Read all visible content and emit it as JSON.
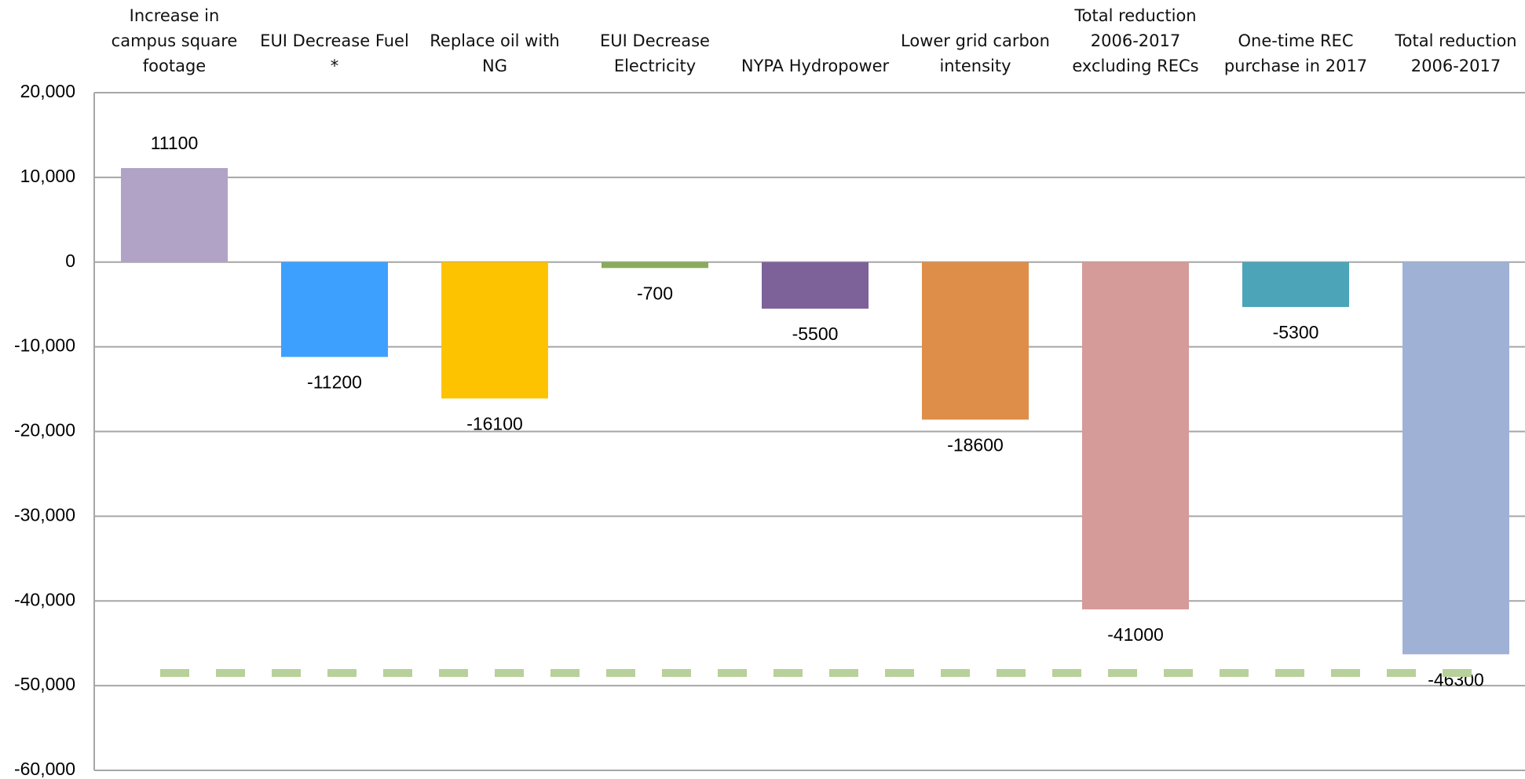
{
  "chart_data": {
    "type": "bar",
    "categories": [
      "Increase in campus square footage",
      "EUI Decrease Fuel *",
      "Replace oil with NG",
      "EUI Decrease Electricity",
      "NYPA Hydropower",
      "Lower grid carbon intensity",
      "Total reduction 2006-2017 excluding RECs",
      "One-time REC purchase in 2017",
      "Total reduction 2006-2017"
    ],
    "values": [
      11100,
      -11200,
      -16100,
      -700,
      -5500,
      -18600,
      -41000,
      -5300,
      -46300
    ],
    "colors": [
      "#b1a3c6",
      "#3ea0fe",
      "#fec300",
      "#8aac5a",
      "#7d6299",
      "#de8e48",
      "#d59b98",
      "#4ba4b8",
      "#9fb2d6"
    ],
    "ylim": [
      -60000,
      20000
    ],
    "yticks": [
      {
        "value": 20000,
        "label": "20,000"
      },
      {
        "value": 10000,
        "label": "10,000"
      },
      0,
      {
        "value": -10000,
        "label": "-10,000"
      },
      {
        "value": -20000,
        "label": "-20,000"
      },
      {
        "value": -30000,
        "label": "-30,000"
      },
      {
        "value": -40000,
        "label": "-40,000"
      },
      {
        "value": -50000,
        "label": "-50,000"
      },
      {
        "value": -60000,
        "label": "-60,000"
      }
    ],
    "grid": true,
    "reference_line": {
      "value": -48500,
      "color": "#b8d09a"
    }
  }
}
